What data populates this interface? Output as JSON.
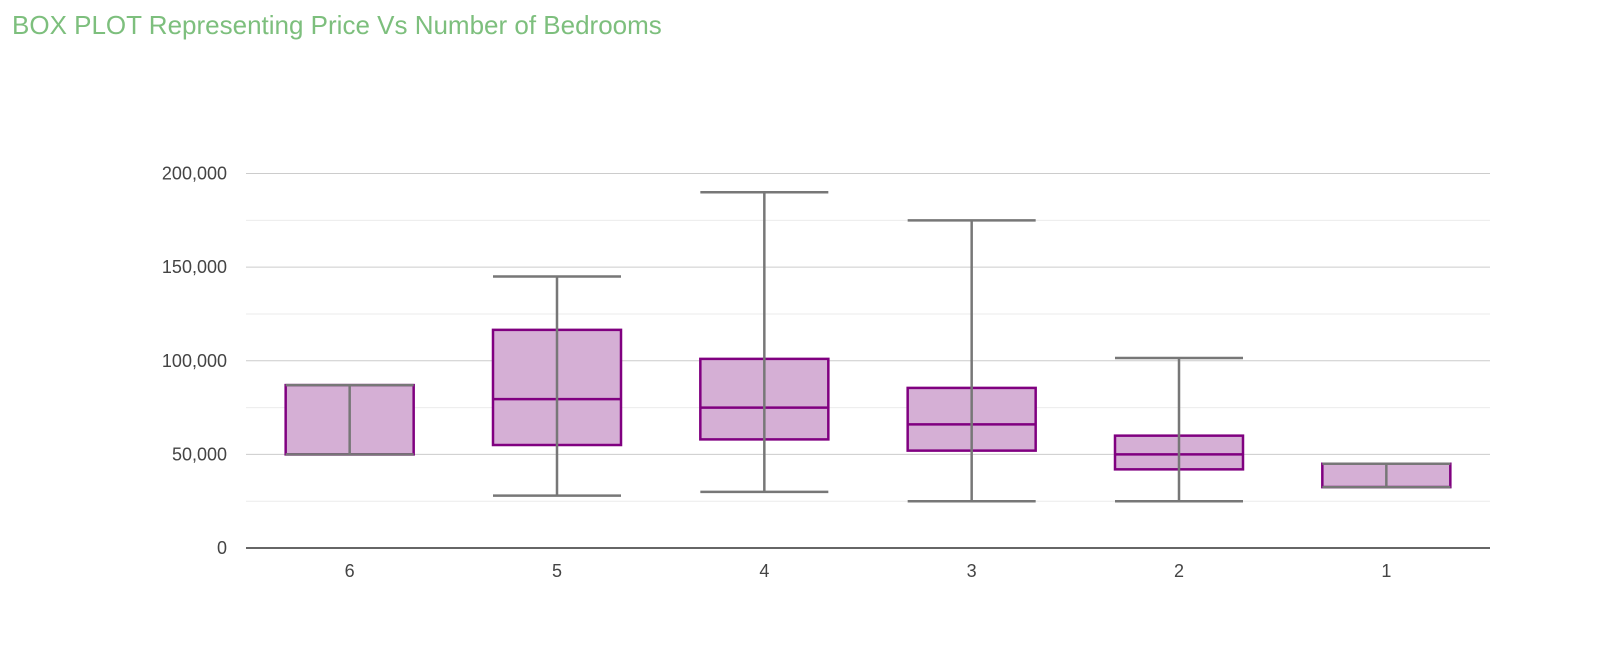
{
  "chart_data": {
    "type": "boxplot",
    "title": "BOX PLOT Representing Price Vs Number of Bedrooms",
    "xlabel": "",
    "ylabel": "",
    "ylim": [
      0,
      200000
    ],
    "y_ticks": [
      {
        "value": 0,
        "label": "0"
      },
      {
        "value": 50000,
        "label": "50,000"
      },
      {
        "value": 100000,
        "label": "100,000"
      },
      {
        "value": 150000,
        "label": "150,000"
      },
      {
        "value": 200000,
        "label": "200,000"
      }
    ],
    "minor_gridlines": [
      25000,
      75000,
      125000,
      175000
    ],
    "grid": true,
    "legend": "none",
    "categories": [
      "6",
      "5",
      "4",
      "3",
      "2",
      "1"
    ],
    "boxes": [
      {
        "category": "6",
        "min": 50000,
        "q1": 50000,
        "median": 50000,
        "q3": 87000,
        "max": 87000
      },
      {
        "category": "5",
        "min": 28000,
        "q1": 55000,
        "median": 79500,
        "q3": 116500,
        "max": 145000
      },
      {
        "category": "4",
        "min": 30000,
        "q1": 58000,
        "median": 75000,
        "q3": 101000,
        "max": 190000
      },
      {
        "category": "3",
        "min": 25000,
        "q1": 52000,
        "median": 66000,
        "q3": 85500,
        "max": 175000
      },
      {
        "category": "2",
        "min": 25000,
        "q1": 42000,
        "median": 50000,
        "q3": 60000,
        "max": 101500
      },
      {
        "category": "1",
        "min": 32500,
        "q1": 32500,
        "median": 32500,
        "q3": 45000,
        "max": 45000
      }
    ],
    "colors": {
      "title": "#7dbf7d",
      "box_fill": "#d5afd5",
      "box_stroke": "#800080",
      "whisker": "#777777",
      "major_grid": "#cccccc",
      "minor_grid": "#ebebeb",
      "baseline": "#333333",
      "tick_text": "#444444"
    }
  }
}
